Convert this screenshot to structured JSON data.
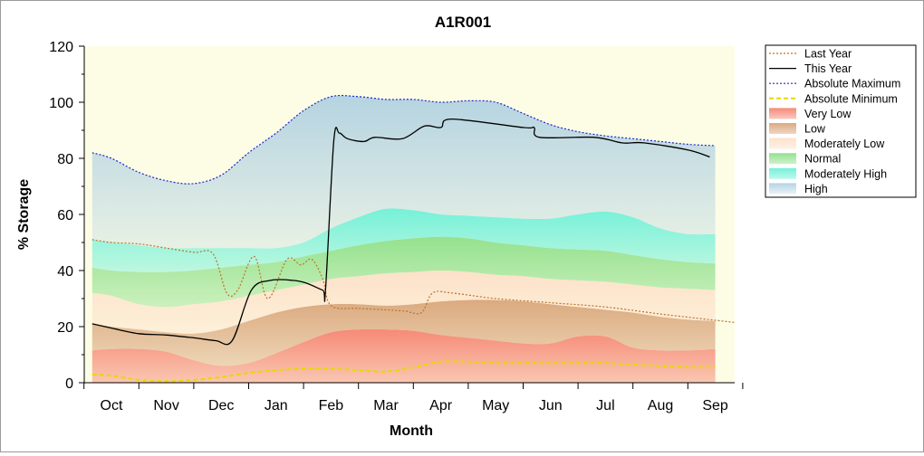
{
  "chart_data": {
    "type": "area",
    "title": "A1R001",
    "xlabel": "Month",
    "ylabel": "% Storage",
    "categories": [
      "Oct",
      "Nov",
      "Dec",
      "Jan",
      "Feb",
      "Mar",
      "Apr",
      "May",
      "Jun",
      "Jul",
      "Aug",
      "Sep"
    ],
    "ylim": [
      0,
      120
    ],
    "yticks": [
      0,
      20,
      40,
      60,
      80,
      100,
      120
    ],
    "legend_position": "right",
    "grid": false,
    "colors": {
      "last_year": "#b8742a",
      "this_year": "#000000",
      "absolute_maximum": "#1e28c8",
      "absolute_minimum": "#e8d800",
      "very_low": "#f58470",
      "low": "#d9a57a",
      "moderately_low": "#fde0c8",
      "normal": "#8fe08a",
      "moderately_high": "#6ff0d8",
      "high": "#a8cce0",
      "plot_background": "#fdfde6"
    },
    "series": [
      {
        "name": "Last Year",
        "style": "dotted",
        "points": [
          [
            -0.35,
            51
          ],
          [
            0,
            50
          ],
          [
            0.5,
            49.5
          ],
          [
            1,
            48
          ],
          [
            1.5,
            46.5
          ],
          [
            1.85,
            46
          ],
          [
            2.1,
            32
          ],
          [
            2.3,
            33
          ],
          [
            2.6,
            45
          ],
          [
            2.85,
            30
          ],
          [
            3.2,
            44
          ],
          [
            3.45,
            42
          ],
          [
            3.65,
            44
          ],
          [
            3.85,
            37
          ],
          [
            4.0,
            27.5
          ],
          [
            4.5,
            26.5
          ],
          [
            5,
            26
          ],
          [
            5.35,
            25.5
          ],
          [
            5.65,
            25
          ],
          [
            5.85,
            32
          ],
          [
            6.2,
            32
          ],
          [
            7,
            30
          ],
          [
            8,
            28.5
          ],
          [
            9,
            27
          ],
          [
            10,
            24.5
          ],
          [
            10.9,
            22.5
          ],
          [
            11.35,
            21.5
          ]
        ]
      },
      {
        "name": "This Year",
        "style": "solid",
        "points": [
          [
            -0.35,
            21
          ],
          [
            0,
            19.5
          ],
          [
            0.5,
            17.5
          ],
          [
            1,
            17
          ],
          [
            1.5,
            16
          ],
          [
            1.9,
            15
          ],
          [
            2.2,
            15
          ],
          [
            2.55,
            33
          ],
          [
            2.9,
            36.5
          ],
          [
            3.3,
            36.5
          ],
          [
            3.55,
            35.5
          ],
          [
            3.85,
            33
          ],
          [
            3.9,
            33
          ],
          [
            4.05,
            86
          ],
          [
            4.15,
            89
          ],
          [
            4.3,
            87
          ],
          [
            4.6,
            86
          ],
          [
            4.8,
            87.5
          ],
          [
            5.3,
            87
          ],
          [
            5.7,
            91.5
          ],
          [
            6.0,
            91
          ],
          [
            6.2,
            94
          ],
          [
            7.5,
            91
          ],
          [
            7.7,
            91
          ],
          [
            7.8,
            87.5
          ],
          [
            8.8,
            87.5
          ],
          [
            9.3,
            85.5
          ],
          [
            9.7,
            85.5
          ],
          [
            10.5,
            83
          ],
          [
            10.9,
            80.5
          ]
        ]
      },
      {
        "name": "Absolute Maximum",
        "style": "dotted",
        "points": [
          [
            -0.35,
            82
          ],
          [
            0,
            80
          ],
          [
            0.5,
            75
          ],
          [
            1,
            72
          ],
          [
            1.5,
            71
          ],
          [
            2,
            74
          ],
          [
            2.5,
            82
          ],
          [
            3,
            89
          ],
          [
            3.5,
            97
          ],
          [
            4,
            102
          ],
          [
            4.5,
            102
          ],
          [
            5,
            101
          ],
          [
            5.5,
            101
          ],
          [
            6,
            100
          ],
          [
            6.5,
            100.5
          ],
          [
            7,
            100
          ],
          [
            7.5,
            96
          ],
          [
            8,
            92
          ],
          [
            8.5,
            89.5
          ],
          [
            9,
            88
          ],
          [
            9.5,
            87
          ],
          [
            10,
            86
          ],
          [
            10.5,
            85
          ],
          [
            11,
            84.5
          ]
        ]
      },
      {
        "name": "Absolute Minimum",
        "style": "dashed",
        "points": [
          [
            -0.35,
            3
          ],
          [
            0,
            2.5
          ],
          [
            0.5,
            1
          ],
          [
            1,
            0.5
          ],
          [
            1.5,
            1
          ],
          [
            2,
            2
          ],
          [
            2.5,
            3.5
          ],
          [
            3,
            4.5
          ],
          [
            3.5,
            5
          ],
          [
            4,
            5
          ],
          [
            4.5,
            4.5
          ],
          [
            5,
            4
          ],
          [
            5.5,
            5.5
          ],
          [
            6,
            7.5
          ],
          [
            6.5,
            7.5
          ],
          [
            7,
            7
          ],
          [
            7.5,
            7
          ],
          [
            8,
            7
          ],
          [
            8.5,
            7
          ],
          [
            9,
            7
          ],
          [
            9.5,
            6.5
          ],
          [
            10,
            6
          ],
          [
            10.5,
            5.5
          ],
          [
            11,
            5.5
          ]
        ]
      },
      {
        "name": "Very Low",
        "style": "band",
        "x": [
          -0.35,
          0,
          0.5,
          1,
          1.5,
          2,
          2.5,
          3,
          3.5,
          4,
          4.5,
          5,
          5.5,
          6,
          6.5,
          7,
          7.5,
          8,
          8.5,
          9,
          9.5,
          10,
          10.5,
          11
        ],
        "lower": [
          0,
          0,
          0,
          0,
          0,
          0,
          0,
          0,
          0,
          0,
          0,
          0,
          0,
          0,
          0,
          0,
          0,
          0,
          0,
          0,
          0,
          0,
          0,
          0
        ],
        "upper": [
          11.5,
          12,
          12,
          11,
          8,
          6,
          7,
          10.5,
          14.5,
          18,
          19,
          19,
          18.5,
          17,
          16,
          15,
          14,
          14,
          16.5,
          16.5,
          12.5,
          11.5,
          11.5,
          12
        ]
      },
      {
        "name": "Low",
        "style": "band",
        "x": [
          -0.35,
          0,
          0.5,
          1,
          1.5,
          2,
          2.5,
          3,
          3.5,
          4,
          4.5,
          5,
          5.5,
          6,
          6.5,
          7,
          7.5,
          8,
          8.5,
          9,
          9.5,
          10,
          10.5,
          11
        ],
        "lower": [
          11.5,
          12,
          12,
          11,
          8,
          6,
          7,
          10.5,
          14.5,
          18,
          19,
          19,
          18.5,
          17,
          16,
          15,
          14,
          14,
          16.5,
          16.5,
          12.5,
          11.5,
          11.5,
          12
        ],
        "upper": [
          21,
          20,
          19,
          18,
          17.5,
          19,
          22,
          25,
          27,
          28,
          28,
          27.5,
          28,
          29,
          29.5,
          29.5,
          29,
          28,
          27,
          26,
          25,
          23.5,
          22.5,
          22
        ]
      },
      {
        "name": "Moderately Low",
        "style": "band",
        "x": [
          -0.35,
          0,
          0.5,
          1,
          1.5,
          2,
          2.5,
          3,
          3.5,
          4,
          4.5,
          5,
          5.5,
          6,
          6.5,
          7,
          7.5,
          8,
          8.5,
          9,
          9.5,
          10,
          10.5,
          11
        ],
        "lower": [
          21,
          20,
          19,
          18,
          17.5,
          19,
          22,
          25,
          27,
          28,
          28,
          27.5,
          28,
          29,
          29.5,
          29.5,
          29,
          28,
          27,
          26,
          25,
          23.5,
          22.5,
          22
        ],
        "upper": [
          32,
          31,
          28,
          27,
          28,
          29,
          31,
          33,
          35,
          37,
          38,
          39,
          39.5,
          40,
          39.5,
          38.5,
          38,
          37,
          36.5,
          36,
          35,
          34,
          33.5,
          33
        ]
      },
      {
        "name": "Normal",
        "style": "band",
        "x": [
          -0.35,
          0,
          0.5,
          1,
          1.5,
          2,
          2.5,
          3,
          3.5,
          4,
          4.5,
          5,
          5.5,
          6,
          6.5,
          7,
          7.5,
          8,
          8.5,
          9,
          9.5,
          10,
          10.5,
          11
        ],
        "lower": [
          32,
          31,
          28,
          27,
          28,
          29,
          31,
          33,
          35,
          37,
          38,
          39,
          39.5,
          40,
          39.5,
          38.5,
          38,
          37,
          36.5,
          36,
          35,
          34,
          33.5,
          33
        ],
        "upper": [
          41,
          40,
          39.5,
          39.5,
          40,
          41,
          42,
          43,
          45,
          47,
          49,
          50.5,
          51.5,
          52,
          51.5,
          50,
          49,
          48,
          47.5,
          47,
          45.5,
          44,
          43,
          42.5
        ]
      },
      {
        "name": "Moderately High",
        "style": "band",
        "x": [
          -0.35,
          0,
          0.5,
          1,
          1.5,
          2,
          2.5,
          3,
          3.5,
          4,
          4.5,
          5,
          5.5,
          6,
          6.5,
          7,
          7.5,
          8,
          8.5,
          9,
          9.5,
          10,
          10.5,
          11
        ],
        "lower": [
          41,
          40,
          39.5,
          39.5,
          40,
          41,
          42,
          43,
          45,
          47,
          49,
          50.5,
          51.5,
          52,
          51.5,
          50,
          49,
          48,
          47.5,
          47,
          45.5,
          44,
          43,
          42.5
        ],
        "upper": [
          51,
          50,
          49,
          48,
          48,
          48,
          48,
          48,
          50,
          55,
          59,
          62,
          61.5,
          60,
          59.5,
          59,
          58.5,
          58.5,
          60,
          61,
          59,
          55,
          53,
          53
        ]
      },
      {
        "name": "High",
        "style": "band",
        "x": [
          -0.35,
          0,
          0.5,
          1,
          1.5,
          2,
          2.5,
          3,
          3.5,
          4,
          4.5,
          5,
          5.5,
          6,
          6.5,
          7,
          7.5,
          8,
          8.5,
          9,
          9.5,
          10,
          10.5,
          11
        ],
        "lower": [
          51,
          50,
          49,
          48,
          48,
          48,
          48,
          48,
          50,
          55,
          59,
          62,
          61.5,
          60,
          59.5,
          59,
          58.5,
          58.5,
          60,
          61,
          59,
          55,
          53,
          53
        ],
        "upper": [
          82,
          80,
          75,
          72,
          71,
          74,
          82,
          89,
          97,
          102,
          102,
          101,
          101,
          100,
          100.5,
          100,
          96,
          92,
          89.5,
          88,
          87,
          86,
          85,
          84.5
        ]
      }
    ]
  }
}
